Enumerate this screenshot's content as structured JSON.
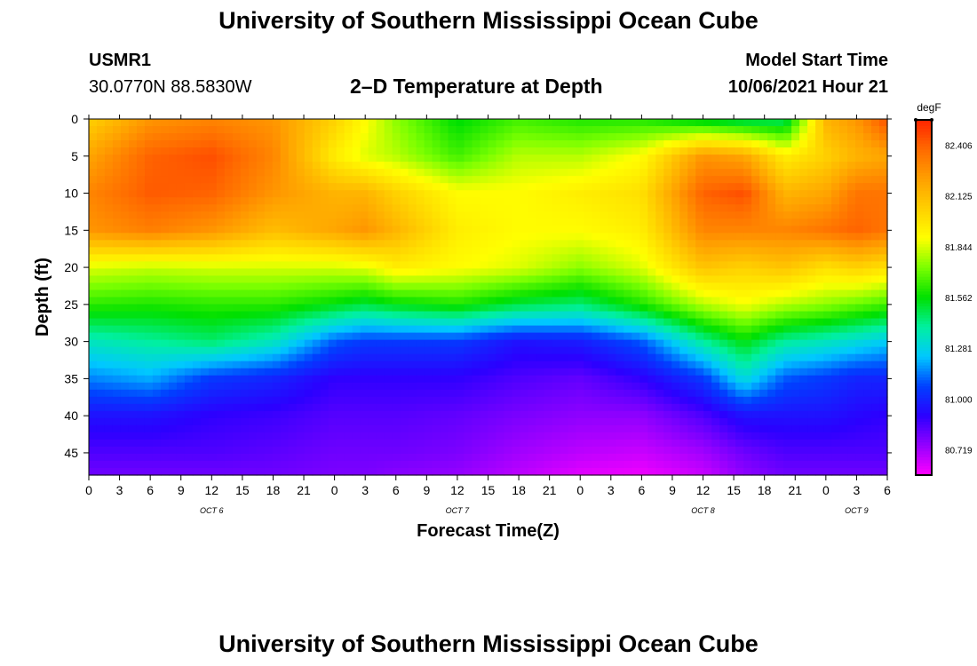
{
  "page": {
    "title_top": "University of Southern Mississippi Ocean Cube",
    "title_bottom": "University of Southern Mississippi Ocean Cube",
    "station_id": "USMR1",
    "station_coords": "30.0770N  88.5830W",
    "model_start_label": "Model Start Time",
    "model_start_value": "10/06/2021 Hour 21"
  },
  "chart_data": {
    "type": "heatmap",
    "title": "2–D Temperature at Depth",
    "xlabel": "Forecast Time(Z)",
    "ylabel": "Depth (ft)",
    "colorbar_unit": "degF",
    "x_tick_labels": [
      "0",
      "3",
      "6",
      "9",
      "12",
      "15",
      "18",
      "21",
      "0",
      "3",
      "6",
      "9",
      "12",
      "15",
      "18",
      "21",
      "0",
      "3",
      "6",
      "9",
      "12",
      "15",
      "18",
      "21",
      "0",
      "3",
      "6"
    ],
    "x_range_hours": [
      0,
      78
    ],
    "date_labels": [
      {
        "text": "OCT 6",
        "hour": 12
      },
      {
        "text": "OCT 7",
        "hour": 36
      },
      {
        "text": "OCT 8",
        "hour": 60
      },
      {
        "text": "OCT 9",
        "hour": 75
      }
    ],
    "y_ticks": [
      0,
      5,
      10,
      15,
      20,
      25,
      30,
      35,
      40,
      45
    ],
    "y_range": [
      0,
      48
    ],
    "y_inverted": true,
    "colorbar_ticks": [
      "82.406",
      "82.125",
      "81.844",
      "81.562",
      "81.281",
      "81.000",
      "80.719"
    ],
    "colorbar_range": [
      80.578,
      82.547
    ],
    "colormap": [
      "#ff00ff",
      "#9400ff",
      "#2b00ff",
      "#0040ff",
      "#00c8ff",
      "#00f0a0",
      "#00e000",
      "#7aff00",
      "#ffff00",
      "#ffd000",
      "#ffa000",
      "#ff6a00",
      "#ff2400"
    ],
    "temperature_profiles": [
      {
        "hour": 0,
        "depths": [
          0,
          5,
          10,
          15,
          20,
          25,
          30,
          35,
          40,
          45,
          48
        ],
        "temps": [
          82.05,
          82.2,
          82.3,
          82.25,
          81.85,
          81.62,
          81.35,
          81.15,
          80.95,
          80.85,
          80.8
        ]
      },
      {
        "hour": 6,
        "depths": [
          0,
          5,
          10,
          15,
          20,
          25,
          30,
          35,
          40,
          45,
          48
        ],
        "temps": [
          82.25,
          82.4,
          82.42,
          82.32,
          81.82,
          81.6,
          81.4,
          81.2,
          80.95,
          80.85,
          80.8
        ]
      },
      {
        "hour": 12,
        "depths": [
          0,
          5,
          10,
          15,
          20,
          25,
          30,
          35,
          40,
          45,
          48
        ],
        "temps": [
          82.3,
          82.45,
          82.4,
          82.25,
          81.84,
          81.62,
          81.45,
          81.05,
          80.9,
          80.85,
          80.8
        ]
      },
      {
        "hour": 18,
        "depths": [
          0,
          5,
          10,
          15,
          20,
          25,
          30,
          35,
          40,
          45,
          48
        ],
        "temps": [
          82.25,
          82.3,
          82.25,
          82.12,
          81.84,
          81.62,
          81.35,
          81.0,
          80.88,
          80.83,
          80.8
        ]
      },
      {
        "hour": 24,
        "depths": [
          0,
          5,
          10,
          15,
          20,
          25,
          30,
          35,
          40,
          45,
          48
        ],
        "temps": [
          82.05,
          81.95,
          82.15,
          82.2,
          81.84,
          81.55,
          81.1,
          80.9,
          80.84,
          80.8,
          80.78
        ]
      },
      {
        "hour": 27,
        "depths": [
          0,
          5,
          10,
          15,
          20,
          25,
          30,
          35,
          40,
          45,
          48
        ],
        "temps": [
          81.9,
          81.85,
          82.15,
          82.25,
          81.86,
          81.5,
          81.05,
          80.9,
          80.84,
          80.8,
          80.78
        ]
      },
      {
        "hour": 30,
        "depths": [
          0,
          5,
          10,
          15,
          20,
          25,
          30,
          35,
          40,
          45,
          48
        ],
        "temps": [
          81.75,
          81.8,
          82.05,
          82.15,
          81.95,
          81.55,
          81.05,
          80.9,
          80.84,
          80.8,
          80.76
        ]
      },
      {
        "hour": 36,
        "depths": [
          0,
          5,
          10,
          15,
          20,
          25,
          30,
          35,
          40,
          45,
          48
        ],
        "temps": [
          81.55,
          81.65,
          81.9,
          81.95,
          81.9,
          81.6,
          81.05,
          80.9,
          80.82,
          80.78,
          80.74
        ]
      },
      {
        "hour": 42,
        "depths": [
          0,
          5,
          10,
          15,
          20,
          25,
          30,
          35,
          40,
          45,
          48
        ],
        "temps": [
          81.65,
          81.8,
          81.9,
          81.9,
          81.85,
          81.5,
          80.95,
          80.85,
          80.78,
          80.72,
          80.68
        ]
      },
      {
        "hour": 48,
        "depths": [
          0,
          5,
          10,
          15,
          20,
          25,
          30,
          35,
          40,
          45,
          48
        ],
        "temps": [
          81.6,
          81.8,
          81.95,
          81.9,
          81.75,
          81.45,
          80.98,
          80.82,
          80.75,
          80.68,
          80.62
        ]
      },
      {
        "hour": 54,
        "depths": [
          0,
          5,
          10,
          15,
          20,
          25,
          30,
          35,
          40,
          45,
          48
        ],
        "temps": [
          81.6,
          81.9,
          82.0,
          81.95,
          81.85,
          81.6,
          81.1,
          80.9,
          80.75,
          80.66,
          80.6
        ]
      },
      {
        "hour": 60,
        "depths": [
          0,
          5,
          10,
          15,
          20,
          25,
          30,
          35,
          40,
          45,
          48
        ],
        "temps": [
          81.5,
          82.25,
          82.4,
          82.3,
          82.1,
          81.8,
          81.4,
          81.05,
          80.85,
          80.72,
          80.66
        ]
      },
      {
        "hour": 64,
        "depths": [
          0,
          5,
          10,
          15,
          20,
          25,
          30,
          35,
          40,
          45,
          48
        ],
        "temps": [
          81.45,
          82.2,
          82.45,
          82.3,
          82.05,
          81.88,
          81.55,
          81.3,
          80.95,
          80.8,
          80.75
        ]
      },
      {
        "hour": 68,
        "depths": [
          0,
          5,
          10,
          15,
          20,
          25,
          30,
          35,
          40,
          45,
          48
        ],
        "temps": [
          81.45,
          81.95,
          82.15,
          82.3,
          82.1,
          81.8,
          81.4,
          81.1,
          80.95,
          80.85,
          80.8
        ]
      },
      {
        "hour": 72,
        "depths": [
          0,
          5,
          10,
          15,
          20,
          25,
          30,
          35,
          40,
          45,
          48
        ],
        "temps": [
          82.15,
          82.05,
          82.2,
          82.35,
          82.0,
          81.75,
          81.35,
          81.05,
          80.95,
          80.85,
          80.8
        ]
      },
      {
        "hour": 75,
        "depths": [
          0,
          5,
          10,
          15,
          20,
          25,
          30,
          35,
          40,
          45,
          48
        ],
        "temps": [
          82.25,
          82.15,
          82.35,
          82.4,
          82.05,
          81.7,
          81.3,
          81.0,
          80.92,
          80.85,
          80.8
        ]
      },
      {
        "hour": 78,
        "depths": [
          0,
          5,
          10,
          15,
          20,
          25,
          30,
          35,
          40,
          45,
          48
        ],
        "temps": [
          82.45,
          82.2,
          82.35,
          82.35,
          82.0,
          81.65,
          81.25,
          81.0,
          80.9,
          80.85,
          80.8
        ]
      }
    ]
  }
}
